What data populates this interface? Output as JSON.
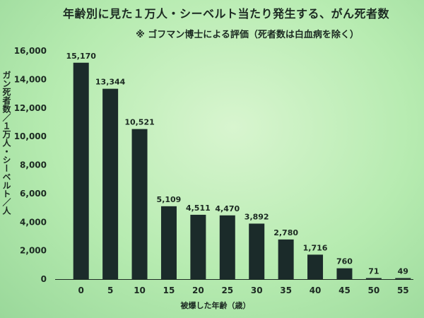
{
  "chart_data": {
    "type": "bar",
    "title": "年齢別に見た１万人・シーベルト当たり発生する、がん死者数",
    "subtitle": "※ ゴフマン博士による評価（死者数は白血病を除く）",
    "xlabel": "被爆した年齢（歳）",
    "ylabel": "ガン死者数／１万人・シーベルト／人",
    "categories": [
      "0",
      "5",
      "10",
      "15",
      "20",
      "25",
      "30",
      "35",
      "40",
      "45",
      "50",
      "55"
    ],
    "values": [
      15170,
      13344,
      10521,
      5109,
      4511,
      4470,
      3892,
      2780,
      1716,
      760,
      71,
      49
    ],
    "value_labels": [
      "15,170",
      "13,344",
      "10,521",
      "5,109",
      "4,511",
      "4,470",
      "3,892",
      "2,780",
      "1,716",
      "760",
      "71",
      "49"
    ],
    "yticks": [
      "0",
      "2,000",
      "4,000",
      "6,000",
      "8,000",
      "10,000",
      "12,000",
      "14,000",
      "16,000"
    ],
    "ylim": [
      0,
      16000
    ],
    "grid": false,
    "bar_color": "#1b2b2a"
  }
}
